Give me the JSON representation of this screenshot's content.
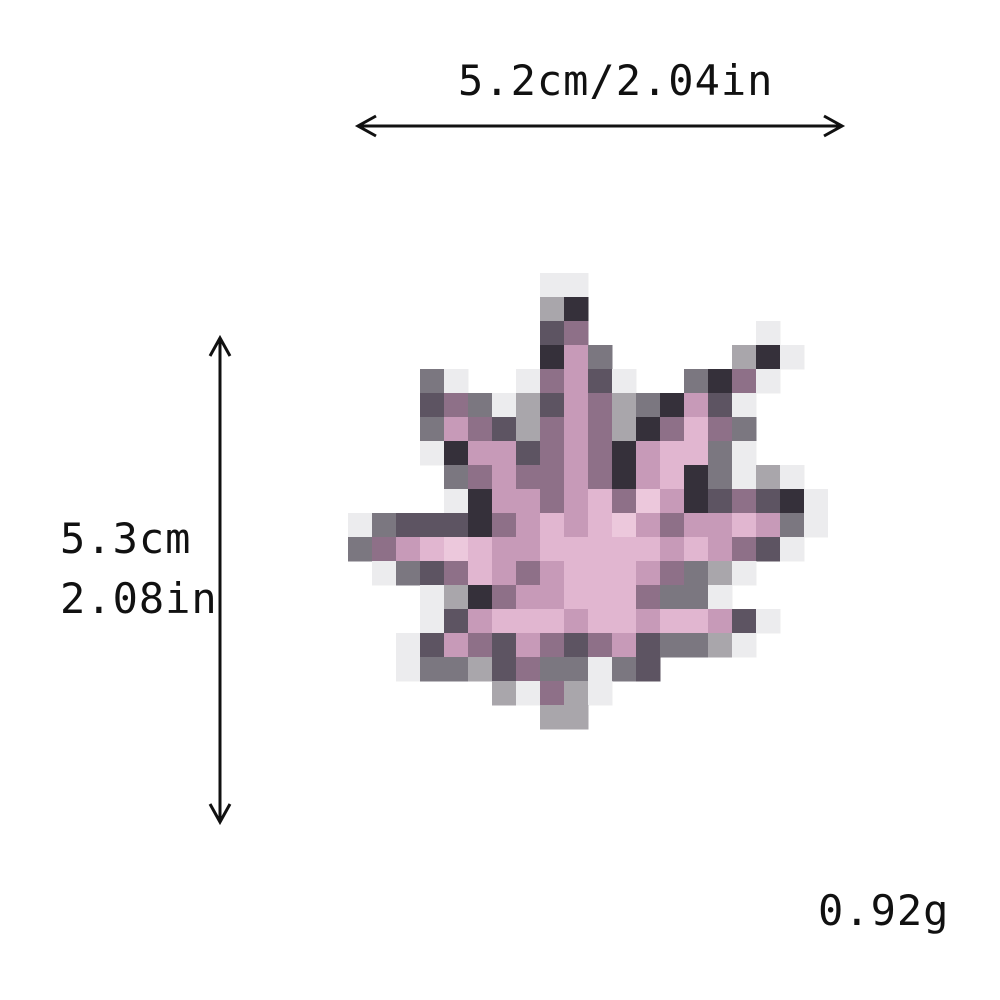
{
  "dimensions": {
    "width_label": "5.2cm/2.04in",
    "height_label_cm": "5.3cm",
    "height_label_in": "2.08in",
    "weight_label": "0.92g"
  },
  "colors": {
    "leaf_light": "#e3b8d3",
    "leaf_mid": "#c99bb8",
    "leaf_dark": "#5f5060",
    "outline": "#3a3440",
    "arrow": "#111111"
  },
  "icons": {
    "product": "pink-pixelated-leaf-icon",
    "width_arrow": "double-arrow-horizontal",
    "height_arrow": "double-arrow-vertical"
  }
}
